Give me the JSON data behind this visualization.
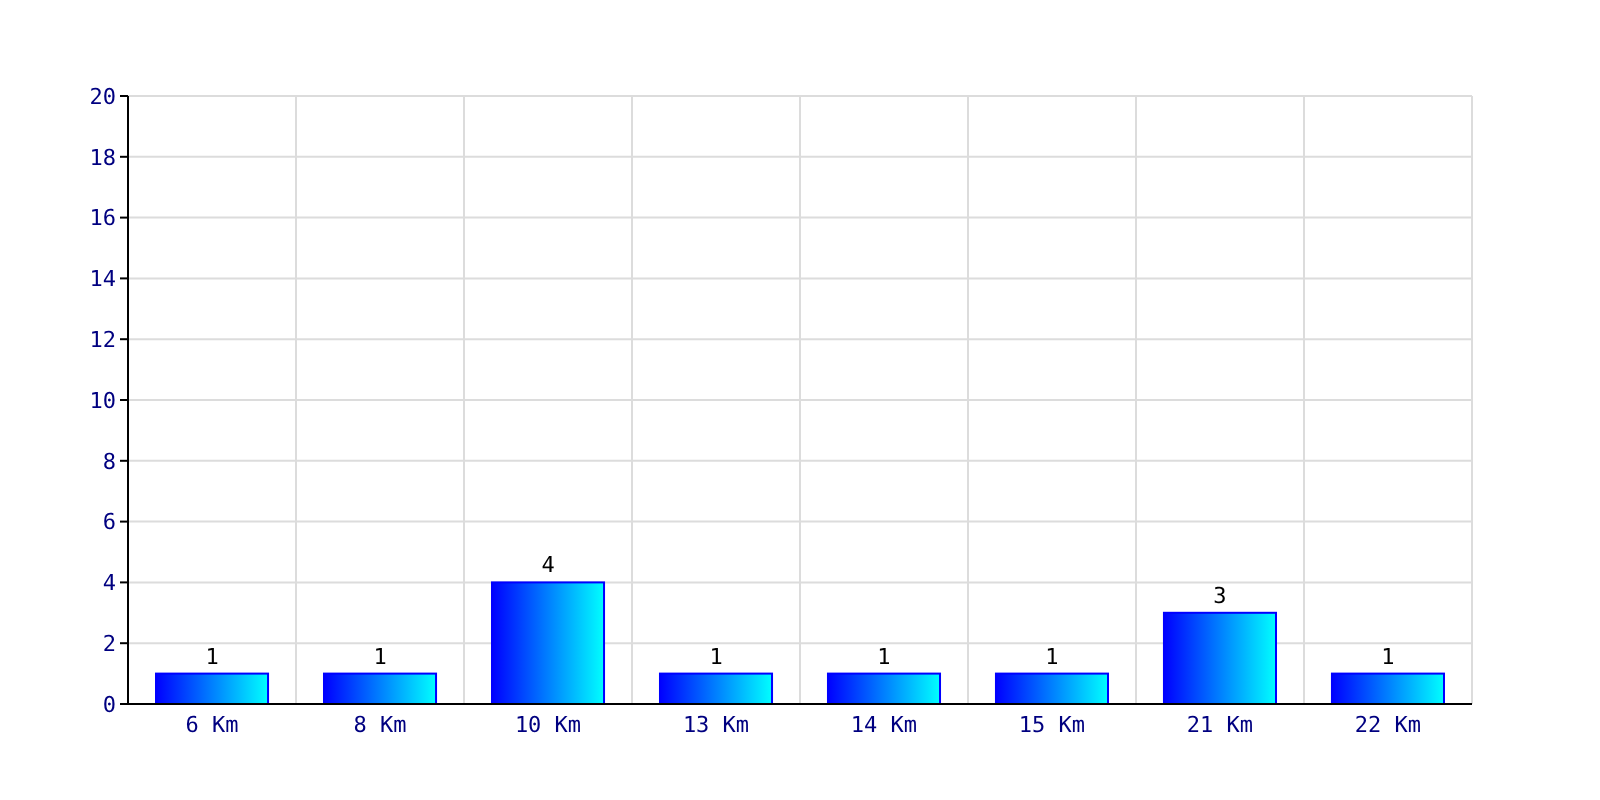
{
  "chart_data": {
    "type": "bar",
    "categories": [
      "6 Km",
      "8 Km",
      "10 Km",
      "13 Km",
      "14 Km",
      "15 Km",
      "21 Km",
      "22 Km"
    ],
    "values": [
      1,
      1,
      4,
      1,
      1,
      1,
      3,
      1
    ],
    "color": "#0000ff",
    "ylim": [
      0,
      20
    ],
    "yticks": [
      0,
      2,
      4,
      6,
      8,
      10,
      12,
      14,
      16,
      18,
      20
    ],
    "grid": true,
    "data_labels": true
  }
}
